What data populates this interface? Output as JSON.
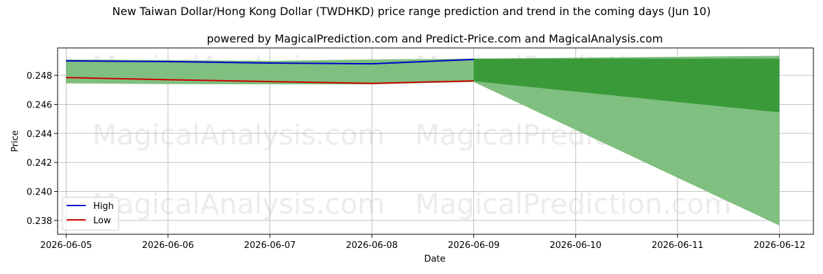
{
  "chart_data": {
    "type": "line",
    "title": "New Taiwan Dollar/Hong Kong Dollar (TWDHKD) price range prediction and trend in the coming days (Jun 10)",
    "subtitle": "powered by MagicalPrediction.com and Predict-Price.com and MagicalAnalysis.com",
    "xlabel": "Date",
    "ylabel": "Price",
    "x_ticks": [
      "2026-06-05",
      "2026-06-06",
      "2026-06-07",
      "2026-06-08",
      "2026-06-09",
      "2026-06-10",
      "2026-06-11",
      "2026-06-12"
    ],
    "y_ticks": [
      "0.238",
      "0.240",
      "0.242",
      "0.244",
      "0.246",
      "0.248"
    ],
    "xlim": [
      "2026-06-04T22:00",
      "2026-06-12T08:00"
    ],
    "ylim": [
      0.23705,
      0.24989
    ],
    "grid": true,
    "legend_position": "lower-left",
    "series": [
      {
        "name": "High",
        "color": "#0000cc",
        "x": [
          "2026-06-05",
          "2026-06-06",
          "2026-06-07",
          "2026-06-08",
          "2026-06-09"
        ],
        "values": [
          0.249,
          0.24895,
          0.24885,
          0.2488,
          0.2491
        ]
      },
      {
        "name": "Low",
        "color": "#cc0000",
        "x": [
          "2026-06-05",
          "2026-06-06",
          "2026-06-07",
          "2026-06-08",
          "2026-06-09"
        ],
        "values": [
          0.24785,
          0.2477,
          0.24757,
          0.24745,
          0.24762
        ]
      }
    ],
    "historical_band": {
      "color": "#7fbf7f",
      "x": [
        "2026-06-05",
        "2026-06-06",
        "2026-06-07",
        "2026-06-08",
        "2026-06-09"
      ],
      "upper": [
        0.2491,
        0.24905,
        0.249,
        0.2491,
        0.24915
      ],
      "lower": [
        0.24745,
        0.2474,
        0.24738,
        0.24738,
        0.24755
      ]
    },
    "prediction_outer_band": {
      "color": "#7fbf7f",
      "x": [
        "2026-06-09",
        "2026-06-12"
      ],
      "upper": [
        0.24915,
        0.24935
      ],
      "lower": [
        0.24755,
        0.23765
      ]
    },
    "prediction_inner_band": {
      "color": "#3a9a3a",
      "x": [
        "2026-06-09",
        "2026-06-12"
      ],
      "upper": [
        0.24915,
        0.24915
      ],
      "lower": [
        0.2476,
        0.24545
      ]
    },
    "watermarks": [
      "MagicalAnalysis.com",
      "MagicalPrediction.com",
      "MagicalAnalysis.com",
      "MagicalPrediction.com",
      "MagicalAnalysis.com",
      "MagicalPrediction.com"
    ]
  }
}
